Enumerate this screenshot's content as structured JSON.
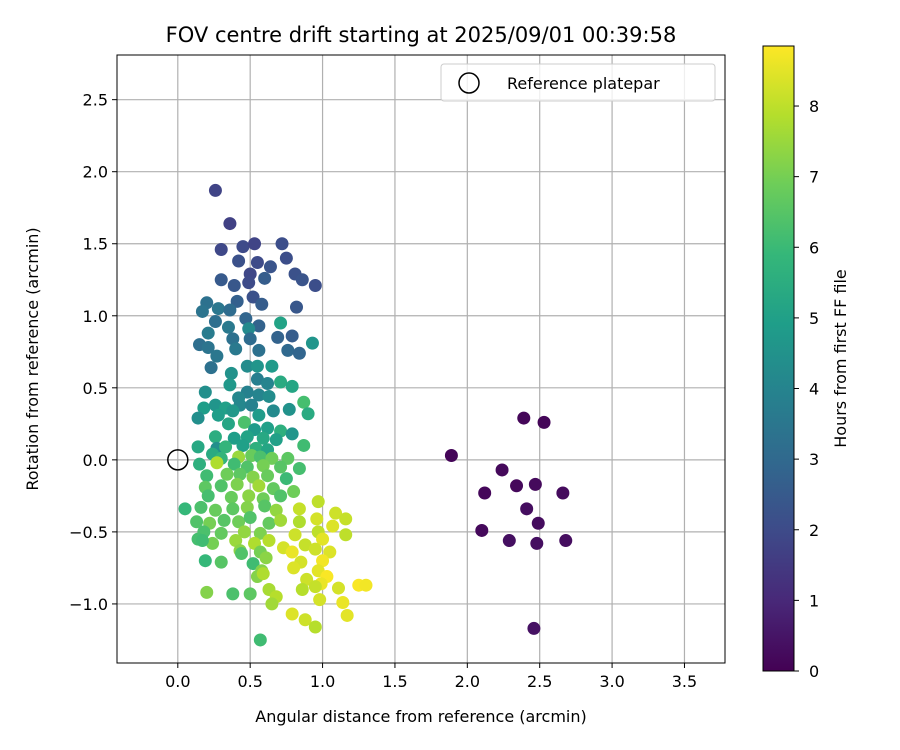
{
  "chart_data": {
    "type": "scatter",
    "title": "FOV centre drift starting at 2025/09/01 00:39:58",
    "xlabel": "Angular distance from reference (arcmin)",
    "ylabel": "Rotation from reference (arcmin)",
    "xlim": [
      -0.42,
      3.78
    ],
    "ylim": [
      -1.41,
      2.81
    ],
    "xticks": [
      "0.0",
      "0.5",
      "1.0",
      "1.5",
      "2.0",
      "2.5",
      "3.0",
      "3.5"
    ],
    "yticks": [
      "−1.0",
      "−0.5",
      "0.0",
      "0.5",
      "1.0",
      "1.5",
      "2.0",
      "2.5"
    ],
    "grid": true,
    "legend": {
      "placement": "top-right",
      "entries": [
        "Reference platepar"
      ]
    },
    "reference_point": {
      "x": 0.0,
      "y": 0.0
    },
    "colorbar": {
      "label": "Hours from first FF file",
      "min": 0,
      "max": 8.85,
      "ticks": [
        "0",
        "1",
        "2",
        "3",
        "4",
        "5",
        "6",
        "7",
        "8"
      ],
      "colormap": "viridis"
    },
    "points": [
      {
        "x": 1.89,
        "y": 0.03,
        "c": 0.1
      },
      {
        "x": 2.39,
        "y": 0.29,
        "c": 0.15
      },
      {
        "x": 2.53,
        "y": 0.26,
        "c": 0.12
      },
      {
        "x": 2.24,
        "y": -0.07,
        "c": 0.2
      },
      {
        "x": 2.34,
        "y": -0.18,
        "c": 0.18
      },
      {
        "x": 2.47,
        "y": -0.17,
        "c": 0.22
      },
      {
        "x": 2.12,
        "y": -0.23,
        "c": 0.16
      },
      {
        "x": 2.66,
        "y": -0.23,
        "c": 0.25
      },
      {
        "x": 2.41,
        "y": -0.34,
        "c": 0.3
      },
      {
        "x": 2.49,
        "y": -0.44,
        "c": 0.28
      },
      {
        "x": 2.1,
        "y": -0.49,
        "c": 0.2
      },
      {
        "x": 2.29,
        "y": -0.56,
        "c": 0.35
      },
      {
        "x": 2.48,
        "y": -0.58,
        "c": 0.32
      },
      {
        "x": 2.68,
        "y": -0.56,
        "c": 0.3
      },
      {
        "x": 2.46,
        "y": -1.17,
        "c": 0.4
      },
      {
        "x": 0.26,
        "y": 1.87,
        "c": 1.8
      },
      {
        "x": 0.36,
        "y": 1.64,
        "c": 1.7
      },
      {
        "x": 0.3,
        "y": 1.46,
        "c": 1.9
      },
      {
        "x": 0.45,
        "y": 1.48,
        "c": 2.0
      },
      {
        "x": 0.53,
        "y": 1.5,
        "c": 1.8
      },
      {
        "x": 0.72,
        "y": 1.5,
        "c": 2.1
      },
      {
        "x": 0.42,
        "y": 1.38,
        "c": 2.2
      },
      {
        "x": 0.55,
        "y": 1.37,
        "c": 2.0
      },
      {
        "x": 0.64,
        "y": 1.34,
        "c": 2.3
      },
      {
        "x": 0.75,
        "y": 1.4,
        "c": 2.1
      },
      {
        "x": 0.5,
        "y": 1.29,
        "c": 1.9
      },
      {
        "x": 0.81,
        "y": 1.29,
        "c": 2.2
      },
      {
        "x": 0.3,
        "y": 1.25,
        "c": 2.5
      },
      {
        "x": 0.39,
        "y": 1.21,
        "c": 2.4
      },
      {
        "x": 0.49,
        "y": 1.23,
        "c": 2.0
      },
      {
        "x": 0.6,
        "y": 1.26,
        "c": 2.6
      },
      {
        "x": 0.86,
        "y": 1.25,
        "c": 2.3
      },
      {
        "x": 0.95,
        "y": 1.21,
        "c": 2.1
      },
      {
        "x": 0.41,
        "y": 1.1,
        "c": 2.7
      },
      {
        "x": 0.52,
        "y": 1.13,
        "c": 2.2
      },
      {
        "x": 0.58,
        "y": 1.08,
        "c": 2.6
      },
      {
        "x": 0.82,
        "y": 1.06,
        "c": 2.4
      },
      {
        "x": 0.2,
        "y": 1.09,
        "c": 3.3
      },
      {
        "x": 0.28,
        "y": 1.05,
        "c": 3.5
      },
      {
        "x": 0.36,
        "y": 1.04,
        "c": 3.1
      },
      {
        "x": 0.47,
        "y": 0.98,
        "c": 2.9
      },
      {
        "x": 0.17,
        "y": 1.03,
        "c": 3.4
      },
      {
        "x": 0.26,
        "y": 0.96,
        "c": 3.2
      },
      {
        "x": 0.35,
        "y": 0.92,
        "c": 3.6
      },
      {
        "x": 0.56,
        "y": 0.93,
        "c": 2.8
      },
      {
        "x": 0.21,
        "y": 0.88,
        "c": 3.7
      },
      {
        "x": 0.49,
        "y": 0.91,
        "c": 4.2
      },
      {
        "x": 0.71,
        "y": 0.95,
        "c": 5.1
      },
      {
        "x": 0.38,
        "y": 0.84,
        "c": 3.3
      },
      {
        "x": 0.5,
        "y": 0.84,
        "c": 3.1
      },
      {
        "x": 0.69,
        "y": 0.85,
        "c": 2.8
      },
      {
        "x": 0.79,
        "y": 0.86,
        "c": 2.6
      },
      {
        "x": 0.93,
        "y": 0.81,
        "c": 4.6
      },
      {
        "x": 0.15,
        "y": 0.8,
        "c": 3.2
      },
      {
        "x": 0.21,
        "y": 0.78,
        "c": 3.4
      },
      {
        "x": 0.4,
        "y": 0.77,
        "c": 3.6
      },
      {
        "x": 0.56,
        "y": 0.76,
        "c": 3.3
      },
      {
        "x": 0.27,
        "y": 0.72,
        "c": 3.5
      },
      {
        "x": 0.76,
        "y": 0.76,
        "c": 3.0
      },
      {
        "x": 0.84,
        "y": 0.74,
        "c": 2.9
      },
      {
        "x": 0.23,
        "y": 0.64,
        "c": 3.3
      },
      {
        "x": 0.48,
        "y": 0.65,
        "c": 4.3
      },
      {
        "x": 0.55,
        "y": 0.65,
        "c": 4.6
      },
      {
        "x": 0.65,
        "y": 0.65,
        "c": 4.8
      },
      {
        "x": 0.37,
        "y": 0.6,
        "c": 4.5
      },
      {
        "x": 0.55,
        "y": 0.56,
        "c": 3.8
      },
      {
        "x": 0.62,
        "y": 0.53,
        "c": 4.0
      },
      {
        "x": 0.71,
        "y": 0.54,
        "c": 5.4
      },
      {
        "x": 0.79,
        "y": 0.51,
        "c": 5.2
      },
      {
        "x": 0.36,
        "y": 0.52,
        "c": 4.7
      },
      {
        "x": 0.48,
        "y": 0.47,
        "c": 3.9
      },
      {
        "x": 0.19,
        "y": 0.47,
        "c": 4.4
      },
      {
        "x": 0.42,
        "y": 0.43,
        "c": 4.1
      },
      {
        "x": 0.56,
        "y": 0.45,
        "c": 4.0
      },
      {
        "x": 0.63,
        "y": 0.44,
        "c": 4.3
      },
      {
        "x": 0.87,
        "y": 0.4,
        "c": 6.2
      },
      {
        "x": 0.18,
        "y": 0.36,
        "c": 4.9
      },
      {
        "x": 0.26,
        "y": 0.38,
        "c": 4.6
      },
      {
        "x": 0.33,
        "y": 0.36,
        "c": 5.0
      },
      {
        "x": 0.43,
        "y": 0.38,
        "c": 4.1
      },
      {
        "x": 0.51,
        "y": 0.38,
        "c": 3.9
      },
      {
        "x": 0.14,
        "y": 0.29,
        "c": 4.4
      },
      {
        "x": 0.28,
        "y": 0.31,
        "c": 4.9
      },
      {
        "x": 0.38,
        "y": 0.34,
        "c": 4.7
      },
      {
        "x": 0.56,
        "y": 0.31,
        "c": 4.8
      },
      {
        "x": 0.66,
        "y": 0.34,
        "c": 4.2
      },
      {
        "x": 0.77,
        "y": 0.35,
        "c": 4.5
      },
      {
        "x": 0.9,
        "y": 0.32,
        "c": 5.4
      },
      {
        "x": 0.35,
        "y": 0.25,
        "c": 5.2
      },
      {
        "x": 0.46,
        "y": 0.26,
        "c": 6.3
      },
      {
        "x": 0.53,
        "y": 0.21,
        "c": 4.8
      },
      {
        "x": 0.62,
        "y": 0.22,
        "c": 5.0
      },
      {
        "x": 0.71,
        "y": 0.2,
        "c": 5.6
      },
      {
        "x": 0.79,
        "y": 0.18,
        "c": 4.6
      },
      {
        "x": 0.26,
        "y": 0.16,
        "c": 5.5
      },
      {
        "x": 0.39,
        "y": 0.15,
        "c": 4.9
      },
      {
        "x": 0.48,
        "y": 0.16,
        "c": 5.1
      },
      {
        "x": 0.59,
        "y": 0.15,
        "c": 5.3
      },
      {
        "x": 0.68,
        "y": 0.14,
        "c": 5.0
      },
      {
        "x": 0.14,
        "y": 0.09,
        "c": 5.3
      },
      {
        "x": 0.27,
        "y": 0.08,
        "c": 4.4
      },
      {
        "x": 0.33,
        "y": 0.09,
        "c": 5.8
      },
      {
        "x": 0.45,
        "y": 0.1,
        "c": 5.0
      },
      {
        "x": 0.54,
        "y": 0.08,
        "c": 5.6
      },
      {
        "x": 0.62,
        "y": 0.07,
        "c": 5.2
      },
      {
        "x": 0.87,
        "y": 0.1,
        "c": 6.1
      },
      {
        "x": 0.24,
        "y": 0.04,
        "c": 5.4
      },
      {
        "x": 0.3,
        "y": 0.01,
        "c": 5.8
      },
      {
        "x": 0.42,
        "y": 0.02,
        "c": 7.5
      },
      {
        "x": 0.51,
        "y": 0.03,
        "c": 6.8
      },
      {
        "x": 0.57,
        "y": 0.02,
        "c": 6.3
      },
      {
        "x": 0.65,
        "y": 0.01,
        "c": 6.9
      },
      {
        "x": 0.76,
        "y": 0.01,
        "c": 6.6
      },
      {
        "x": 0.15,
        "y": -0.03,
        "c": 5.6
      },
      {
        "x": 0.27,
        "y": -0.02,
        "c": 7.8
      },
      {
        "x": 0.39,
        "y": -0.03,
        "c": 6.1
      },
      {
        "x": 0.48,
        "y": -0.05,
        "c": 6.4
      },
      {
        "x": 0.59,
        "y": -0.04,
        "c": 7.0
      },
      {
        "x": 0.71,
        "y": -0.05,
        "c": 6.5
      },
      {
        "x": 0.84,
        "y": -0.06,
        "c": 6.2
      },
      {
        "x": 0.2,
        "y": -0.11,
        "c": 6.1
      },
      {
        "x": 0.34,
        "y": -0.1,
        "c": 6.9
      },
      {
        "x": 0.43,
        "y": -0.1,
        "c": 6.6
      },
      {
        "x": 0.52,
        "y": -0.12,
        "c": 7.2
      },
      {
        "x": 0.62,
        "y": -0.11,
        "c": 6.8
      },
      {
        "x": 0.75,
        "y": -0.13,
        "c": 6.0
      },
      {
        "x": 0.19,
        "y": -0.19,
        "c": 6.6
      },
      {
        "x": 0.3,
        "y": -0.18,
        "c": 6.4
      },
      {
        "x": 0.41,
        "y": -0.17,
        "c": 7.1
      },
      {
        "x": 0.56,
        "y": -0.18,
        "c": 7.6
      },
      {
        "x": 0.66,
        "y": -0.2,
        "c": 6.7
      },
      {
        "x": 0.8,
        "y": -0.22,
        "c": 6.9
      },
      {
        "x": 0.21,
        "y": -0.25,
        "c": 6.2
      },
      {
        "x": 0.37,
        "y": -0.26,
        "c": 6.8
      },
      {
        "x": 0.49,
        "y": -0.25,
        "c": 7.3
      },
      {
        "x": 0.59,
        "y": -0.27,
        "c": 6.9
      },
      {
        "x": 0.71,
        "y": -0.25,
        "c": 6.4
      },
      {
        "x": 0.97,
        "y": -0.29,
        "c": 8.0
      },
      {
        "x": 0.05,
        "y": -0.34,
        "c": 5.9
      },
      {
        "x": 0.16,
        "y": -0.33,
        "c": 6.3
      },
      {
        "x": 0.26,
        "y": -0.35,
        "c": 6.8
      },
      {
        "x": 0.38,
        "y": -0.34,
        "c": 6.6
      },
      {
        "x": 0.48,
        "y": -0.33,
        "c": 7.2
      },
      {
        "x": 0.6,
        "y": -0.32,
        "c": 6.5
      },
      {
        "x": 0.68,
        "y": -0.35,
        "c": 7.4
      },
      {
        "x": 0.84,
        "y": -0.34,
        "c": 8.1
      },
      {
        "x": 1.09,
        "y": -0.37,
        "c": 8.2
      },
      {
        "x": 0.13,
        "y": -0.43,
        "c": 6.4
      },
      {
        "x": 0.22,
        "y": -0.44,
        "c": 7.0
      },
      {
        "x": 0.32,
        "y": -0.42,
        "c": 6.5
      },
      {
        "x": 0.42,
        "y": -0.43,
        "c": 6.9
      },
      {
        "x": 0.5,
        "y": -0.4,
        "c": 6.4
      },
      {
        "x": 0.63,
        "y": -0.44,
        "c": 6.7
      },
      {
        "x": 0.71,
        "y": -0.42,
        "c": 7.6
      },
      {
        "x": 0.84,
        "y": -0.43,
        "c": 7.8
      },
      {
        "x": 0.96,
        "y": -0.41,
        "c": 8.3
      },
      {
        "x": 1.07,
        "y": -0.46,
        "c": 8.4
      },
      {
        "x": 1.16,
        "y": -0.41,
        "c": 8.1
      },
      {
        "x": 0.18,
        "y": -0.5,
        "c": 6.3
      },
      {
        "x": 0.3,
        "y": -0.51,
        "c": 6.7
      },
      {
        "x": 0.46,
        "y": -0.5,
        "c": 7.4
      },
      {
        "x": 0.57,
        "y": -0.51,
        "c": 7.1
      },
      {
        "x": 0.81,
        "y": -0.52,
        "c": 8.2
      },
      {
        "x": 0.97,
        "y": -0.5,
        "c": 8.0
      },
      {
        "x": 1.16,
        "y": -0.52,
        "c": 8.0
      },
      {
        "x": 0.14,
        "y": -0.55,
        "c": 6.2
      },
      {
        "x": 0.24,
        "y": -0.58,
        "c": 7.0
      },
      {
        "x": 0.4,
        "y": -0.56,
        "c": 7.5
      },
      {
        "x": 0.53,
        "y": -0.58,
        "c": 7.8
      },
      {
        "x": 0.63,
        "y": -0.56,
        "c": 7.9
      },
      {
        "x": 0.73,
        "y": -0.61,
        "c": 8.3
      },
      {
        "x": 0.88,
        "y": -0.59,
        "c": 8.1
      },
      {
        "x": 1.0,
        "y": -0.55,
        "c": 8.5
      },
      {
        "x": 0.17,
        "y": -0.56,
        "c": 6.1
      },
      {
        "x": 0.43,
        "y": -0.63,
        "c": 7.3
      },
      {
        "x": 0.57,
        "y": -0.64,
        "c": 7.0
      },
      {
        "x": 0.79,
        "y": -0.64,
        "c": 8.6
      },
      {
        "x": 0.95,
        "y": -0.62,
        "c": 8.2
      },
      {
        "x": 1.05,
        "y": -0.64,
        "c": 8.4
      },
      {
        "x": 0.44,
        "y": -0.65,
        "c": 6.4
      },
      {
        "x": 0.61,
        "y": -0.68,
        "c": 7.3
      },
      {
        "x": 0.85,
        "y": -0.71,
        "c": 8.3
      },
      {
        "x": 1.0,
        "y": -0.7,
        "c": 8.7
      },
      {
        "x": 0.19,
        "y": -0.7,
        "c": 5.9
      },
      {
        "x": 0.3,
        "y": -0.71,
        "c": 6.5
      },
      {
        "x": 0.52,
        "y": -0.72,
        "c": 6.1
      },
      {
        "x": 0.58,
        "y": -0.77,
        "c": 7.2
      },
      {
        "x": 0.8,
        "y": -0.75,
        "c": 8.4
      },
      {
        "x": 0.97,
        "y": -0.77,
        "c": 8.5
      },
      {
        "x": 1.03,
        "y": -0.81,
        "c": 8.8
      },
      {
        "x": 0.55,
        "y": -0.81,
        "c": 7.2
      },
      {
        "x": 0.59,
        "y": -0.79,
        "c": 7.8
      },
      {
        "x": 0.89,
        "y": -0.83,
        "c": 8.2
      },
      {
        "x": 0.99,
        "y": -0.86,
        "c": 8.6
      },
      {
        "x": 1.11,
        "y": -0.89,
        "c": 8.3
      },
      {
        "x": 1.25,
        "y": -0.87,
        "c": 8.8
      },
      {
        "x": 1.3,
        "y": -0.87,
        "c": 8.7
      },
      {
        "x": 0.63,
        "y": -0.9,
        "c": 7.7
      },
      {
        "x": 0.86,
        "y": -0.9,
        "c": 7.9
      },
      {
        "x": 0.95,
        "y": -0.88,
        "c": 8.1
      },
      {
        "x": 0.2,
        "y": -0.92,
        "c": 7.2
      },
      {
        "x": 0.38,
        "y": -0.93,
        "c": 6.3
      },
      {
        "x": 0.5,
        "y": -0.93,
        "c": 6.6
      },
      {
        "x": 0.68,
        "y": -0.95,
        "c": 7.9
      },
      {
        "x": 0.98,
        "y": -0.97,
        "c": 8.3
      },
      {
        "x": 1.14,
        "y": -0.99,
        "c": 8.6
      },
      {
        "x": 0.65,
        "y": -1.0,
        "c": 7.6
      },
      {
        "x": 0.79,
        "y": -1.07,
        "c": 8.4
      },
      {
        "x": 0.88,
        "y": -1.11,
        "c": 8.2
      },
      {
        "x": 0.95,
        "y": -1.16,
        "c": 7.9
      },
      {
        "x": 1.17,
        "y": -1.08,
        "c": 8.5
      },
      {
        "x": 0.57,
        "y": -1.25,
        "c": 6.1
      }
    ]
  }
}
